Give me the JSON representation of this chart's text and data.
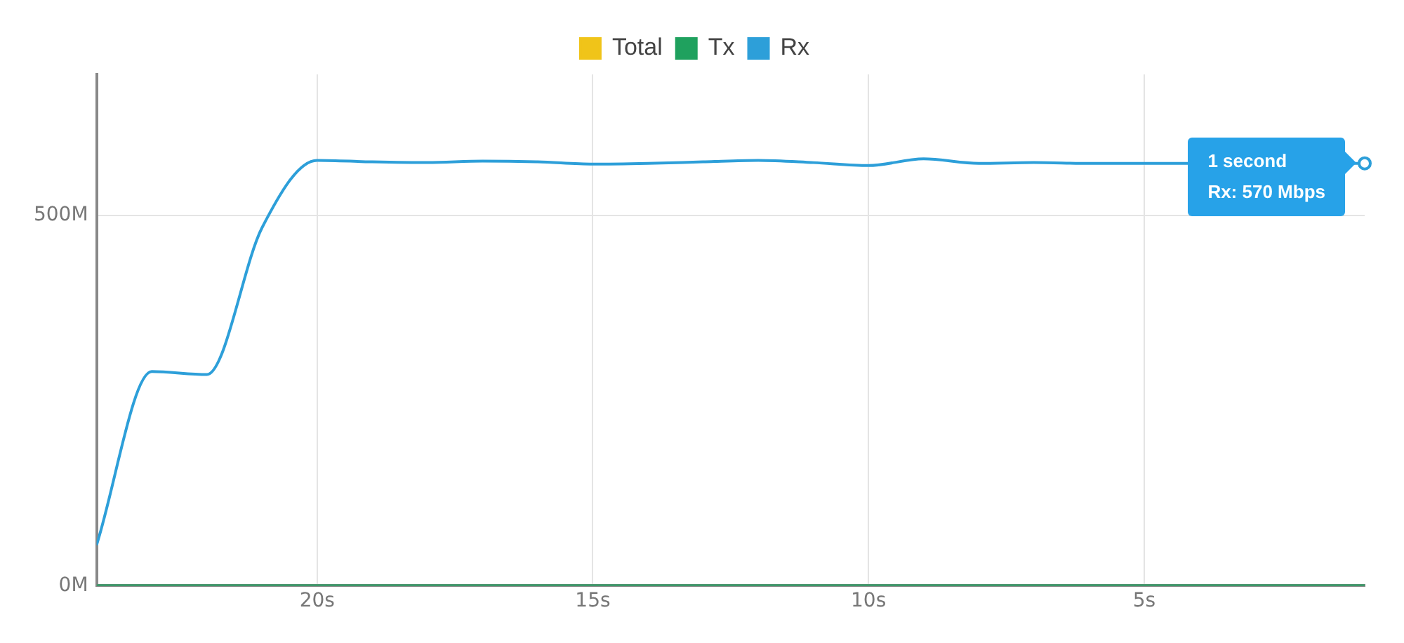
{
  "chart_data": {
    "type": "line",
    "x": [
      24,
      23,
      22,
      21,
      20,
      19,
      18,
      17,
      16,
      15,
      14,
      13,
      12,
      11,
      10,
      9,
      8,
      7,
      6,
      5,
      4,
      3,
      2,
      1
    ],
    "series": [
      {
        "name": "Total",
        "color": "#f0c419",
        "values": [
          null,
          null,
          null,
          null,
          null,
          null,
          null,
          null,
          null,
          null,
          null,
          null,
          null,
          null,
          null,
          null,
          null,
          null,
          null,
          null,
          null,
          null,
          null,
          null
        ]
      },
      {
        "name": "Tx",
        "color": "#1fa15e",
        "values": [
          0,
          0,
          0,
          0,
          0,
          0,
          0,
          0,
          0,
          0,
          0,
          0,
          0,
          0,
          0,
          0,
          0,
          0,
          0,
          0,
          0,
          0,
          0,
          0
        ]
      },
      {
        "name": "Rx",
        "color": "#2d9fd9",
        "values": [
          55,
          289,
          285,
          483,
          574,
          572,
          571,
          573,
          572,
          569,
          570,
          572,
          574,
          571,
          567,
          576,
          570,
          571,
          570,
          570,
          null,
          null,
          null,
          570
        ]
      }
    ],
    "xlim": [
      24,
      1
    ],
    "xticks": [
      {
        "value": 20,
        "label": "20s"
      },
      {
        "value": 15,
        "label": "15s"
      },
      {
        "value": 10,
        "label": "10s"
      },
      {
        "value": 5,
        "label": "5s"
      }
    ],
    "ylim": [
      0,
      690
    ],
    "yticks": [
      {
        "value": 0,
        "label": "0M"
      },
      {
        "value": 500,
        "label": "500M"
      }
    ],
    "grid": true,
    "legend": "top",
    "marker": "none",
    "line_style": "solid",
    "annotations": [
      {
        "text": "1 second\nRx: 570 Mbps",
        "x": 1,
        "y": 570
      }
    ]
  }
}
